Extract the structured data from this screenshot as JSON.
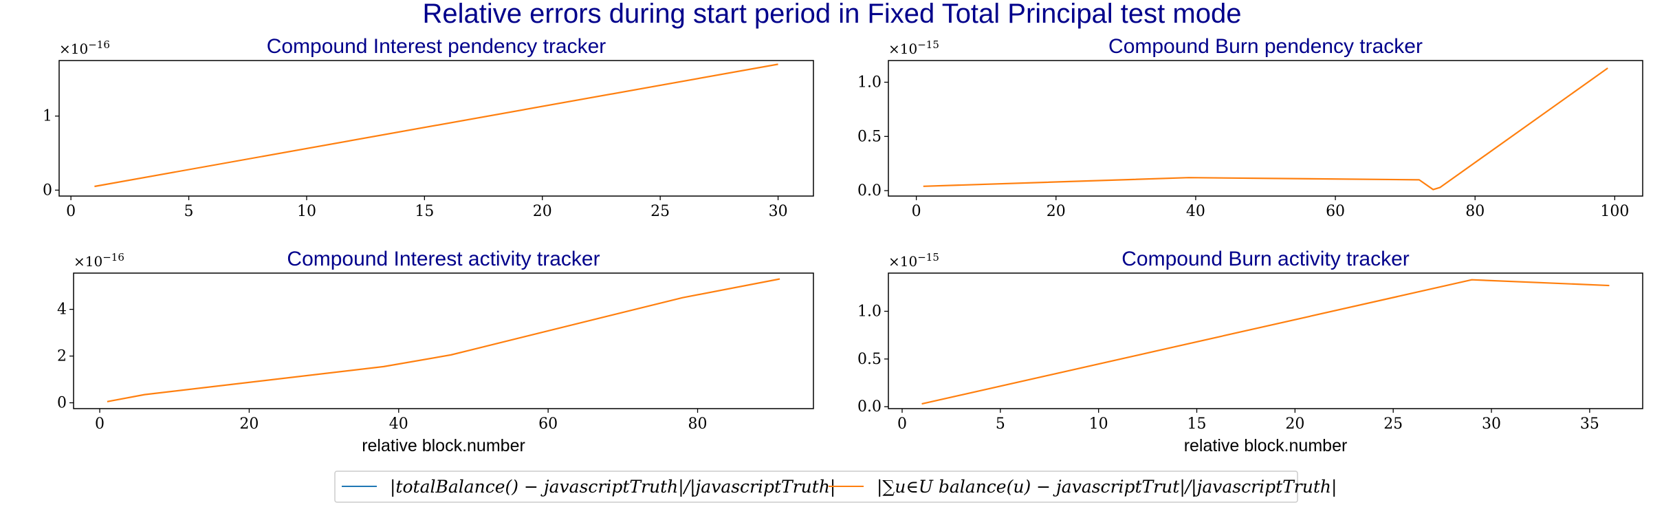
{
  "title": "Relative errors during start period in Fixed Total Principal test mode",
  "legend": [
    {
      "label": "|totalBalance() − javascriptTruth|/|javascriptTruth|",
      "color": "#1f77b4"
    },
    {
      "label": "|∑u∈U balance(u) − javascriptTrut|/|javascriptTruth|",
      "color": "#ff7f0e"
    }
  ],
  "chart_data": [
    {
      "type": "line",
      "title": "Compound Interest pendency tracker",
      "xlabel": "",
      "multiplier": {
        "base": "×10",
        "exp": "−16"
      },
      "xlim": [
        -0.5,
        31.5
      ],
      "ylim": [
        -0.08,
        1.75
      ],
      "xticks": [
        0,
        5,
        10,
        15,
        20,
        25,
        30
      ],
      "yticks": [
        {
          "v": 0,
          "label": "0"
        },
        {
          "v": 1,
          "label": "1"
        }
      ],
      "series": [
        {
          "color": "#ff7f0e",
          "x": [
            1,
            30
          ],
          "y": [
            0.05,
            1.7
          ]
        }
      ]
    },
    {
      "type": "line",
      "title": "Compound Burn pendency tracker",
      "xlabel": "",
      "multiplier": {
        "base": "×10",
        "exp": "−15"
      },
      "xlim": [
        -4,
        104
      ],
      "ylim": [
        -0.05,
        1.2
      ],
      "xticks": [
        0,
        20,
        40,
        60,
        80,
        100
      ],
      "yticks": [
        {
          "v": 0,
          "label": "0.0"
        },
        {
          "v": 0.5,
          "label": "0.5"
        },
        {
          "v": 1,
          "label": "1.0"
        }
      ],
      "series": [
        {
          "color": "#ff7f0e",
          "x": [
            1,
            39,
            72,
            74,
            75,
            99
          ],
          "y": [
            0.04,
            0.12,
            0.1,
            0.01,
            0.03,
            1.13
          ]
        }
      ]
    },
    {
      "type": "line",
      "title": "Compound Interest activity tracker",
      "xlabel": "relative block.number",
      "multiplier": {
        "base": "×10",
        "exp": "−16"
      },
      "xlim": [
        -3.5,
        95.5
      ],
      "ylim": [
        -0.25,
        5.55
      ],
      "xticks": [
        0,
        20,
        40,
        60,
        80
      ],
      "yticks": [
        {
          "v": 0,
          "label": "0"
        },
        {
          "v": 2,
          "label": "2"
        },
        {
          "v": 4,
          "label": "4"
        }
      ],
      "series": [
        {
          "color": "#ff7f0e",
          "x": [
            1,
            6,
            38,
            47,
            78,
            91
          ],
          "y": [
            0.05,
            0.35,
            1.55,
            2.05,
            4.5,
            5.3
          ]
        }
      ]
    },
    {
      "type": "line",
      "title": "Compound Burn activity tracker",
      "xlabel": "relative block.number",
      "multiplier": {
        "base": "×10",
        "exp": "−15"
      },
      "xlim": [
        -0.7,
        37.7
      ],
      "ylim": [
        -0.02,
        1.4
      ],
      "xticks": [
        0,
        5,
        10,
        15,
        20,
        25,
        30,
        35
      ],
      "yticks": [
        {
          "v": 0,
          "label": "0.0"
        },
        {
          "v": 0.5,
          "label": "0.5"
        },
        {
          "v": 1,
          "label": "1.0"
        }
      ],
      "series": [
        {
          "color": "#ff7f0e",
          "x": [
            1,
            29,
            36
          ],
          "y": [
            0.03,
            1.33,
            1.27
          ]
        }
      ]
    }
  ]
}
